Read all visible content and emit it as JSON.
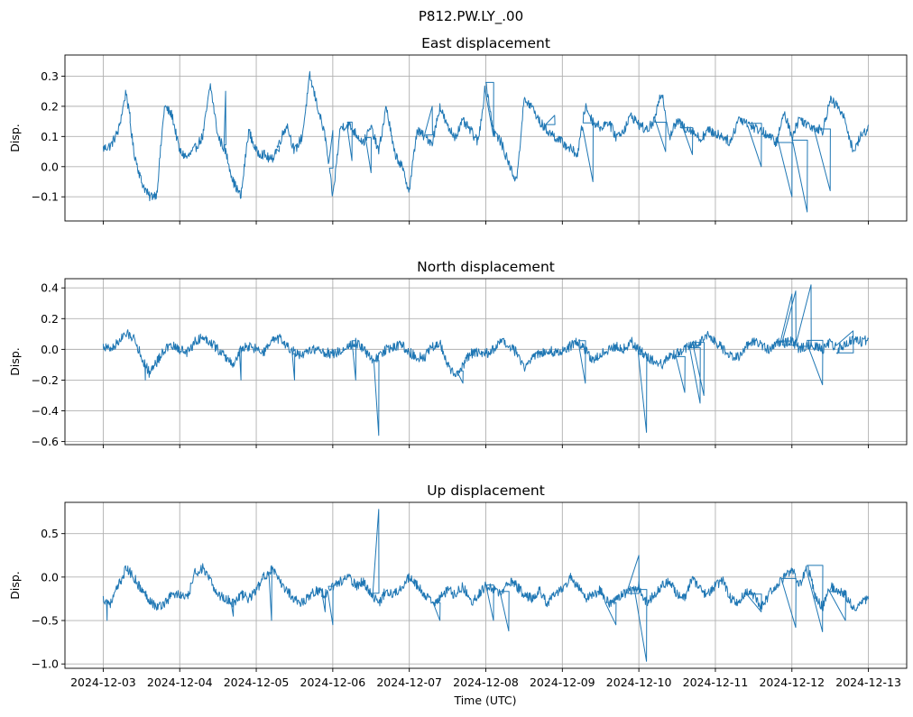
{
  "figure": {
    "suptitle": "P812.PW.LY_.00",
    "xlabel": "Time (UTC)"
  },
  "chart_data": [
    {
      "type": "line",
      "title": "East displacement",
      "xlabel": "",
      "ylabel": "Disp.",
      "color": "#1f77b4",
      "x_start": "2024-12-03",
      "x_end": "2024-12-13",
      "x_ticks": [
        "2024-12-03",
        "2024-12-04",
        "2024-12-05",
        "2024-12-06",
        "2024-12-07",
        "2024-12-08",
        "2024-12-09",
        "2024-12-10",
        "2024-12-11",
        "2024-12-12",
        "2024-12-13"
      ],
      "ylim": [
        -0.18,
        0.37
      ],
      "y_ticks": [
        -0.1,
        0.0,
        0.1,
        0.2,
        0.3
      ],
      "y_tick_labels": [
        "−0.1",
        "0.0",
        "0.1",
        "0.2",
        "0.3"
      ],
      "grid": true,
      "series": [
        {
          "x_days": [
            0,
            0.1,
            0.2,
            0.3,
            0.4,
            0.5,
            0.6,
            0.7,
            0.8,
            0.9,
            1,
            1.1,
            1.2,
            1.3,
            1.4,
            1.5,
            1.6,
            1.7,
            1.8,
            1.9,
            2,
            2.1,
            2.2,
            2.3,
            2.4,
            2.5,
            2.6,
            2.7,
            2.8,
            2.9,
            3,
            3.1,
            3.2,
            3.3,
            3.4,
            3.5,
            3.6,
            3.7,
            3.8,
            3.9,
            4,
            4.1,
            4.2,
            4.3,
            4.4,
            4.5,
            4.6,
            4.7,
            4.8,
            4.9,
            5,
            5.1,
            5.2,
            5.3,
            5.4,
            5.5,
            5.6,
            5.7,
            5.8,
            5.9,
            6,
            6.1,
            6.2,
            6.3,
            6.4,
            6.5,
            6.6,
            6.7,
            6.8,
            6.9,
            7,
            7.1,
            7.2,
            7.3,
            7.4,
            7.5,
            7.6,
            7.7,
            7.8,
            7.9,
            8,
            8.1,
            8.2,
            8.3,
            8.4,
            8.5,
            8.6,
            8.7,
            8.8,
            8.9,
            9,
            9.1,
            9.2,
            9.3,
            9.4,
            9.5,
            9.6,
            9.7,
            9.8,
            9.9,
            10
          ],
          "values": [
            0.06,
            0.07,
            0.12,
            0.25,
            0.05,
            -0.05,
            -0.1,
            -0.09,
            0.2,
            0.17,
            0.05,
            0.03,
            0.06,
            0.1,
            0.27,
            0.1,
            0.05,
            -0.05,
            -0.1,
            0.12,
            0.05,
            0.04,
            0.02,
            0.08,
            0.14,
            0.05,
            0.1,
            0.3,
            0.2,
            0.1,
            -0.1,
            0.13,
            0.14,
            0.11,
            0.08,
            0.13,
            0.05,
            0.2,
            0.05,
            0.0,
            -0.08,
            0.12,
            0.1,
            0.08,
            0.2,
            0.13,
            0.1,
            0.15,
            0.12,
            0.08,
            0.28,
            0.12,
            0.08,
            0.01,
            -0.05,
            0.22,
            0.2,
            0.15,
            0.12,
            0.1,
            0.08,
            0.06,
            0.04,
            0.2,
            0.15,
            0.13,
            0.15,
            0.1,
            0.12,
            0.17,
            0.14,
            0.12,
            0.15,
            0.25,
            0.1,
            0.15,
            0.13,
            0.12,
            0.09,
            0.12,
            0.11,
            0.1,
            0.08,
            0.16,
            0.15,
            0.13,
            0.12,
            0.1,
            0.08,
            0.18,
            0.1,
            0.16,
            0.14,
            0.13,
            0.12,
            0.22,
            0.2,
            0.15,
            0.05,
            0.1,
            0.13
          ],
          "spikes": [
            [
              0.35,
              0.18
            ],
            [
              1.6,
              0.25
            ],
            [
              2.3,
              0.05
            ],
            [
              3.0,
              0.12
            ],
            [
              3.25,
              0.02
            ],
            [
              3.5,
              -0.02
            ],
            [
              4.3,
              0.2
            ],
            [
              5.1,
              0.1
            ],
            [
              5.9,
              0.17
            ],
            [
              6.4,
              -0.05
            ],
            [
              7.35,
              0.05
            ],
            [
              7.7,
              0.04
            ],
            [
              8.6,
              0.0
            ],
            [
              9.0,
              -0.1
            ],
            [
              9.2,
              -0.15
            ],
            [
              9.5,
              -0.08
            ]
          ]
        }
      ]
    },
    {
      "type": "line",
      "title": "North displacement",
      "xlabel": "",
      "ylabel": "Disp.",
      "color": "#1f77b4",
      "x_start": "2024-12-03",
      "x_end": "2024-12-13",
      "x_ticks": [
        "2024-12-03",
        "2024-12-04",
        "2024-12-05",
        "2024-12-06",
        "2024-12-07",
        "2024-12-08",
        "2024-12-09",
        "2024-12-10",
        "2024-12-11",
        "2024-12-12",
        "2024-12-13"
      ],
      "ylim": [
        -0.62,
        0.46
      ],
      "y_ticks": [
        -0.6,
        -0.4,
        -0.2,
        0.0,
        0.2,
        0.4
      ],
      "y_tick_labels": [
        "−0.6",
        "−0.4",
        "−0.2",
        "0.0",
        "0.2",
        "0.4"
      ],
      "grid": true,
      "series": [
        {
          "x_days": [
            0,
            0.1,
            0.2,
            0.3,
            0.4,
            0.5,
            0.6,
            0.7,
            0.8,
            0.9,
            1,
            1.1,
            1.2,
            1.3,
            1.4,
            1.5,
            1.6,
            1.7,
            1.8,
            1.9,
            2,
            2.1,
            2.2,
            2.3,
            2.4,
            2.5,
            2.6,
            2.7,
            2.8,
            2.9,
            3,
            3.1,
            3.2,
            3.3,
            3.4,
            3.5,
            3.6,
            3.7,
            3.8,
            3.9,
            4,
            4.1,
            4.2,
            4.3,
            4.4,
            4.5,
            4.6,
            4.7,
            4.8,
            4.9,
            5,
            5.1,
            5.2,
            5.3,
            5.4,
            5.5,
            5.6,
            5.7,
            5.8,
            5.9,
            6,
            6.1,
            6.2,
            6.3,
            6.4,
            6.5,
            6.6,
            6.7,
            6.8,
            6.9,
            7,
            7.1,
            7.2,
            7.3,
            7.4,
            7.5,
            7.6,
            7.7,
            7.8,
            7.9,
            8,
            8.1,
            8.2,
            8.3,
            8.4,
            8.5,
            8.6,
            8.7,
            8.8,
            8.9,
            9,
            9.1,
            9.2,
            9.3,
            9.4,
            9.5,
            9.6,
            9.7,
            9.8,
            9.9,
            10
          ],
          "values": [
            0.02,
            0.0,
            0.05,
            0.1,
            0.08,
            -0.05,
            -0.15,
            -0.08,
            0.0,
            0.02,
            0.0,
            -0.02,
            0.05,
            0.08,
            0.05,
            0.0,
            -0.05,
            -0.1,
            0.0,
            0.02,
            0.0,
            -0.02,
            0.05,
            0.07,
            0.02,
            -0.02,
            -0.05,
            0.0,
            0.0,
            -0.02,
            -0.03,
            -0.01,
            0.02,
            0.05,
            0.0,
            -0.06,
            -0.05,
            0.0,
            0.02,
            0.03,
            -0.02,
            -0.05,
            -0.05,
            0.02,
            0.04,
            -0.1,
            -0.18,
            -0.1,
            -0.03,
            -0.02,
            -0.03,
            0.0,
            0.05,
            0.02,
            -0.02,
            -0.12,
            -0.05,
            -0.03,
            0.0,
            -0.02,
            -0.01,
            0.02,
            0.05,
            0.0,
            -0.08,
            -0.03,
            0.0,
            0.02,
            0.0,
            0.05,
            0.0,
            -0.05,
            -0.08,
            -0.1,
            -0.05,
            -0.02,
            0.0,
            0.03,
            0.05,
            0.1,
            0.05,
            0.0,
            -0.04,
            -0.05,
            0.02,
            0.05,
            0.03,
            0.0,
            0.05,
            0.04,
            0.06,
            0.0,
            0.03,
            0.02,
            0.0,
            0.05,
            0.0,
            0.04,
            0.06,
            0.05,
            0.06
          ],
          "spikes": [
            [
              0.55,
              -0.2
            ],
            [
              1.8,
              -0.2
            ],
            [
              2.5,
              -0.2
            ],
            [
              3.3,
              -0.2
            ],
            [
              3.6,
              -0.56
            ],
            [
              4.7,
              -0.22
            ],
            [
              6.3,
              -0.22
            ],
            [
              7.1,
              -0.54
            ],
            [
              7.6,
              -0.28
            ],
            [
              7.8,
              -0.35
            ],
            [
              7.85,
              -0.3
            ],
            [
              9.0,
              0.36
            ],
            [
              9.05,
              0.38
            ],
            [
              9.25,
              0.42
            ],
            [
              9.4,
              -0.23
            ],
            [
              9.8,
              0.12
            ]
          ]
        }
      ]
    },
    {
      "type": "line",
      "title": "Up displacement",
      "xlabel": "Time (UTC)",
      "ylabel": "Disp.",
      "color": "#1f77b4",
      "x_start": "2024-12-03",
      "x_end": "2024-12-13",
      "x_ticks": [
        "2024-12-03",
        "2024-12-04",
        "2024-12-05",
        "2024-12-06",
        "2024-12-07",
        "2024-12-08",
        "2024-12-09",
        "2024-12-10",
        "2024-12-11",
        "2024-12-12",
        "2024-12-13"
      ],
      "ylim": [
        -1.05,
        0.86
      ],
      "y_ticks": [
        -1.0,
        -0.5,
        0.0,
        0.5
      ],
      "y_tick_labels": [
        "−1.0",
        "−0.5",
        "0.0",
        "0.5"
      ],
      "grid": true,
      "series": [
        {
          "x_days": [
            0,
            0.1,
            0.2,
            0.3,
            0.4,
            0.5,
            0.6,
            0.7,
            0.8,
            0.9,
            1,
            1.1,
            1.2,
            1.3,
            1.4,
            1.5,
            1.6,
            1.7,
            1.8,
            1.9,
            2,
            2.1,
            2.2,
            2.3,
            2.4,
            2.5,
            2.6,
            2.7,
            2.8,
            2.9,
            3,
            3.1,
            3.2,
            3.3,
            3.4,
            3.5,
            3.6,
            3.7,
            3.8,
            3.9,
            4,
            4.1,
            4.2,
            4.3,
            4.4,
            4.5,
            4.6,
            4.7,
            4.8,
            4.9,
            5,
            5.1,
            5.2,
            5.3,
            5.4,
            5.5,
            5.6,
            5.7,
            5.8,
            5.9,
            6,
            6.1,
            6.2,
            6.3,
            6.4,
            6.5,
            6.6,
            6.7,
            6.8,
            6.9,
            7,
            7.1,
            7.2,
            7.3,
            7.4,
            7.5,
            7.6,
            7.7,
            7.8,
            7.9,
            8,
            8.1,
            8.2,
            8.3,
            8.4,
            8.5,
            8.6,
            8.7,
            8.8,
            8.9,
            9,
            9.1,
            9.2,
            9.3,
            9.4,
            9.5,
            9.6,
            9.7,
            9.8,
            9.9,
            10
          ],
          "values": [
            -0.25,
            -0.3,
            -0.1,
            0.1,
            0.0,
            -0.15,
            -0.25,
            -0.35,
            -0.3,
            -0.2,
            -0.2,
            -0.25,
            0.05,
            0.1,
            -0.05,
            -0.2,
            -0.25,
            -0.3,
            -0.2,
            -0.25,
            -0.15,
            0.0,
            0.1,
            -0.05,
            -0.15,
            -0.25,
            -0.3,
            -0.2,
            -0.15,
            -0.2,
            -0.1,
            -0.05,
            0.0,
            -0.1,
            -0.05,
            -0.2,
            -0.3,
            -0.15,
            -0.2,
            -0.1,
            0.0,
            -0.1,
            -0.2,
            -0.3,
            -0.25,
            -0.15,
            -0.2,
            -0.1,
            -0.3,
            -0.2,
            -0.1,
            -0.15,
            -0.2,
            -0.05,
            -0.1,
            -0.2,
            -0.25,
            -0.15,
            -0.3,
            -0.2,
            -0.15,
            0.0,
            -0.1,
            -0.25,
            -0.2,
            -0.15,
            -0.3,
            -0.25,
            -0.2,
            -0.15,
            -0.1,
            -0.3,
            -0.2,
            -0.1,
            -0.05,
            -0.2,
            -0.25,
            0.0,
            -0.15,
            -0.2,
            -0.1,
            -0.05,
            -0.25,
            -0.3,
            -0.15,
            -0.2,
            -0.35,
            -0.2,
            -0.1,
            0.0,
            0.1,
            -0.1,
            0.15,
            -0.2,
            -0.35,
            -0.1,
            -0.15,
            -0.2,
            -0.35,
            -0.3,
            -0.25
          ],
          "spikes": [
            [
              0.05,
              -0.5
            ],
            [
              1.7,
              -0.45
            ],
            [
              2.2,
              -0.5
            ],
            [
              2.9,
              -0.4
            ],
            [
              3.0,
              -0.55
            ],
            [
              3.6,
              0.78
            ],
            [
              4.4,
              -0.5
            ],
            [
              5.1,
              -0.5
            ],
            [
              5.3,
              -0.62
            ],
            [
              6.7,
              -0.55
            ],
            [
              7.0,
              0.25
            ],
            [
              7.1,
              -0.97
            ],
            [
              8.6,
              -0.4
            ],
            [
              9.05,
              -0.58
            ],
            [
              9.4,
              -0.63
            ],
            [
              9.7,
              -0.5
            ]
          ]
        }
      ]
    }
  ]
}
